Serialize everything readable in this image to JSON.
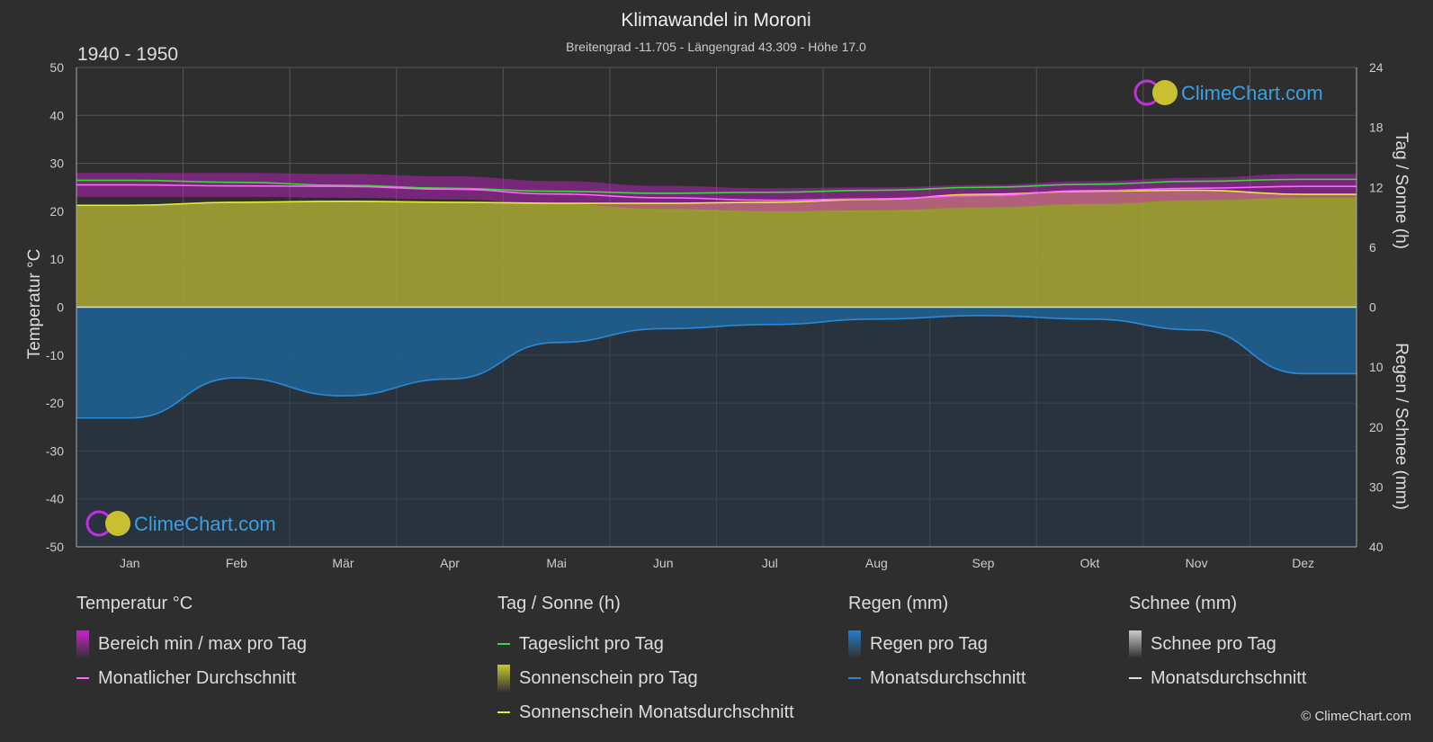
{
  "title": "Klimawandel in Moroni",
  "subtitle": "Breitengrad -11.705 - Längengrad 43.309 - Höhe 17.0",
  "period": "1940 - 1950",
  "logo_text": "ClimeChart.com",
  "copyright": "© ClimeChart.com",
  "colors": {
    "background": "#2e2e2e",
    "temp_range": "#d020d0",
    "temp_avg": "#ff66ff",
    "daylight": "#33dd33",
    "sunshine_fill": "#a8a832",
    "sunshine_avg": "#e8e840",
    "rain_fill": "#1f5f8f",
    "rain_avg": "#2a8ad8",
    "snow": "#dddddd",
    "logo": "#3aa0e0"
  },
  "chart_data": {
    "type": "area",
    "categories": [
      "Jan",
      "Feb",
      "Mär",
      "Apr",
      "Mai",
      "Jun",
      "Jul",
      "Aug",
      "Sep",
      "Okt",
      "Nov",
      "Dez"
    ],
    "y_left": {
      "label": "Temperatur °C",
      "ylim": [
        -50,
        50
      ],
      "ticks": [
        "50",
        "40",
        "30",
        "20",
        "10",
        "0",
        "-10",
        "-20",
        "-30",
        "-40",
        "-50"
      ]
    },
    "y_right_top": {
      "label": "Tag / Sonne (h)",
      "ylim": [
        0,
        24
      ],
      "ticks": [
        "24",
        "18",
        "12",
        "6",
        "0"
      ]
    },
    "y_right_bottom": {
      "label": "Regen / Schnee (mm)",
      "ylim": [
        0,
        40
      ],
      "ticks": [
        "0",
        "10",
        "20",
        "30",
        "40"
      ]
    },
    "grid": true,
    "series": [
      {
        "name": "Tageslicht pro Tag",
        "unit": "h",
        "values": [
          12.7,
          12.5,
          12.2,
          11.9,
          11.6,
          11.4,
          11.5,
          11.7,
          12.0,
          12.3,
          12.6,
          12.8
        ]
      },
      {
        "name": "Sonnenschein Monatsdurchschnitt",
        "unit": "h",
        "values": [
          10.2,
          10.5,
          10.6,
          10.5,
          10.4,
          10.4,
          10.5,
          10.8,
          11.3,
          11.6,
          11.7,
          11.3
        ]
      },
      {
        "name": "Bereich min / max pro Tag",
        "unit": "°C",
        "min": [
          23.0,
          23.0,
          22.8,
          22.5,
          21.5,
          20.5,
          20.0,
          20.2,
          20.8,
          21.5,
          22.3,
          22.8
        ],
        "max": [
          28.0,
          28.0,
          27.8,
          27.3,
          26.3,
          25.3,
          24.8,
          25.0,
          25.5,
          26.3,
          27.0,
          27.8
        ]
      },
      {
        "name": "Monatlicher Durchschnitt",
        "unit": "°C",
        "values": [
          25.5,
          25.3,
          25.2,
          24.6,
          23.6,
          22.8,
          22.3,
          22.6,
          23.3,
          24.3,
          24.8,
          25.2
        ]
      },
      {
        "name": "Regen Monatsdurchschnitt",
        "unit": "mm",
        "values": [
          18.5,
          11.8,
          14.8,
          12.0,
          5.9,
          3.6,
          2.9,
          2.0,
          1.4,
          2.0,
          3.8,
          11.1
        ]
      }
    ]
  },
  "legend": [
    {
      "header": "Temperatur °C",
      "items": [
        {
          "label": "Bereich min / max pro Tag",
          "swatch": "box",
          "color": "#d020d0"
        },
        {
          "label": "Monatlicher Durchschnitt",
          "swatch": "line",
          "color": "#ff66ff"
        }
      ]
    },
    {
      "header": "Tag / Sonne (h)",
      "items": [
        {
          "label": "Tageslicht pro Tag",
          "swatch": "line",
          "color": "#33dd33"
        },
        {
          "label": "Sonnenschein pro Tag",
          "swatch": "box",
          "color": "#c8c830"
        },
        {
          "label": "Sonnenschein Monatsdurchschnitt",
          "swatch": "line",
          "color": "#e8e840"
        }
      ]
    },
    {
      "header": "Regen (mm)",
      "items": [
        {
          "label": "Regen pro Tag",
          "swatch": "box",
          "color": "#1f7fcf"
        },
        {
          "label": "Monatsdurchschnitt",
          "swatch": "line",
          "color": "#2a8ad8"
        }
      ]
    },
    {
      "header": "Schnee (mm)",
      "items": [
        {
          "label": "Schnee pro Tag",
          "swatch": "box",
          "color": "#cccccc"
        },
        {
          "label": "Monatsdurchschnitt",
          "swatch": "line",
          "color": "#dddddd"
        }
      ]
    }
  ]
}
